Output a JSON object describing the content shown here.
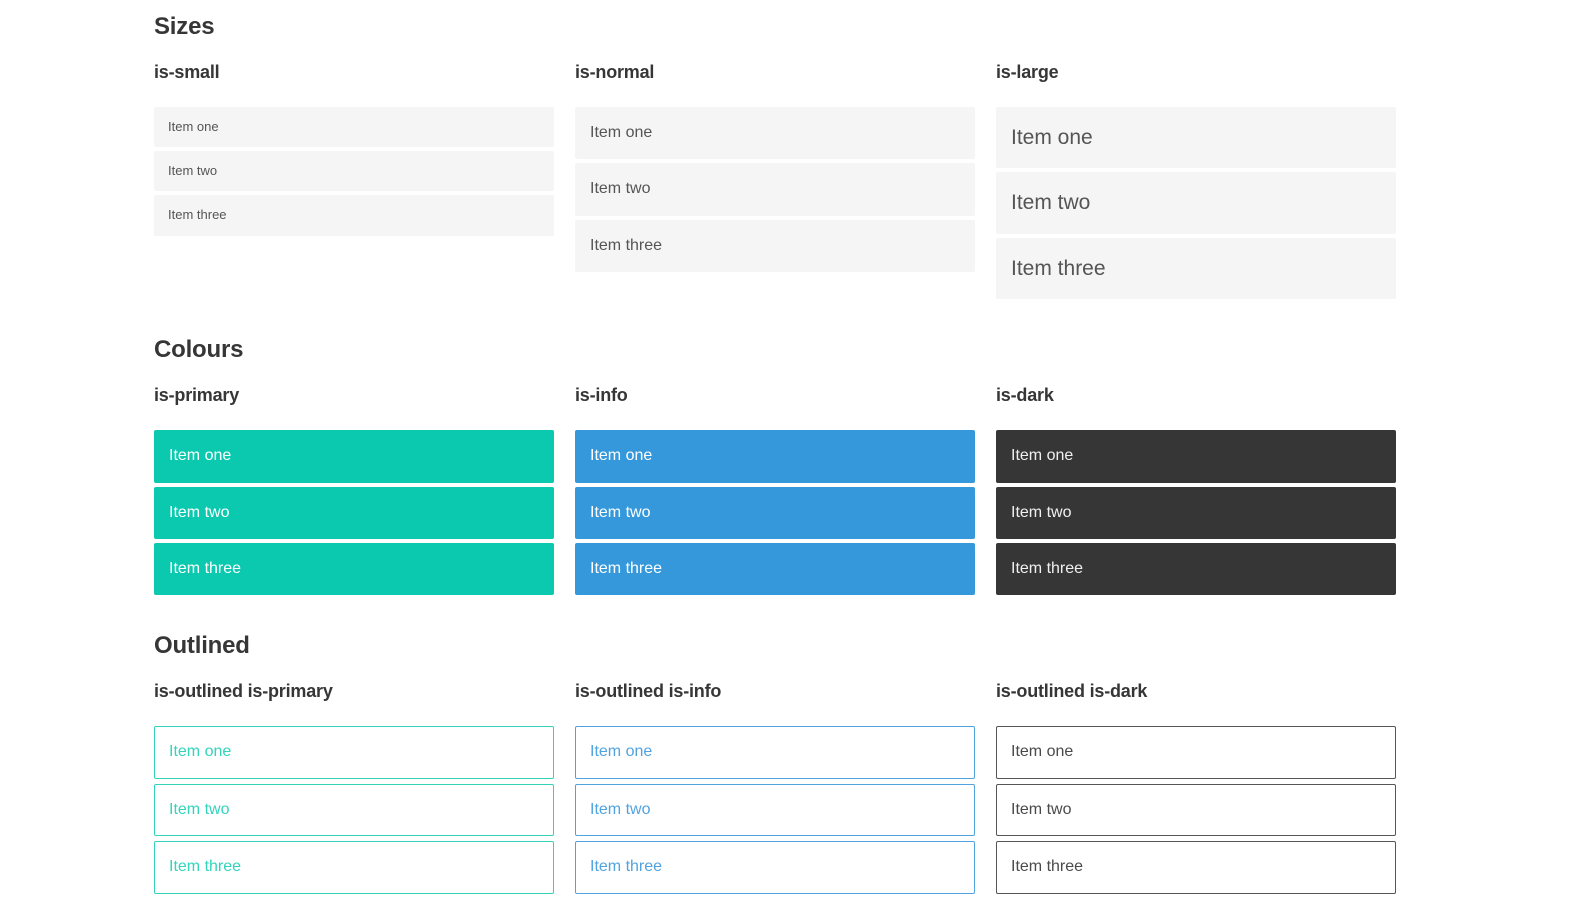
{
  "colors": {
    "heading": "#363636",
    "item_bg": "#f5f5f5",
    "item_text": "#555555",
    "primary": "#0ac9ae",
    "primary_outline": "#33d4bc",
    "info": "#3598db",
    "info_outline": "#51a3e0",
    "dark": "#363636",
    "dark_item_text": "#f0f0f0",
    "dark_outline_border": "#565656",
    "dark_outline_text": "#4a4a4a",
    "on_color_text": "#ffffff"
  },
  "sections": [
    {
      "title": "Sizes",
      "groups": [
        {
          "label": "is-small",
          "items": [
            "Item one",
            "Item two",
            "Item three"
          ]
        },
        {
          "label": "is-normal",
          "items": [
            "Item one",
            "Item two",
            "Item three"
          ]
        },
        {
          "label": "is-large",
          "items": [
            "Item one",
            "Item two",
            "Item three"
          ]
        }
      ]
    },
    {
      "title": "Colours",
      "groups": [
        {
          "label": "is-primary",
          "items": [
            "Item one",
            "Item two",
            "Item three"
          ]
        },
        {
          "label": "is-info",
          "items": [
            "Item one",
            "Item two",
            "Item three"
          ]
        },
        {
          "label": "is-dark",
          "items": [
            "Item one",
            "Item two",
            "Item three"
          ]
        }
      ]
    },
    {
      "title": "Outlined",
      "groups": [
        {
          "label": "is-outlined is-primary",
          "items": [
            "Item one",
            "Item two",
            "Item three"
          ]
        },
        {
          "label": "is-outlined is-info",
          "items": [
            "Item one",
            "Item two",
            "Item three"
          ]
        },
        {
          "label": "is-outlined is-dark",
          "items": [
            "Item one",
            "Item two",
            "Item three"
          ]
        }
      ]
    }
  ]
}
